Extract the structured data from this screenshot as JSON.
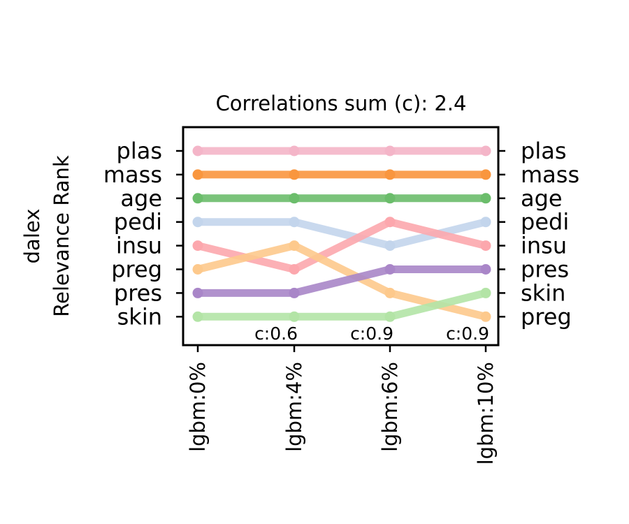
{
  "chart_data": {
    "type": "line",
    "title": "Correlations sum (c): 2.4",
    "ylabel_lines": [
      "dalex",
      "Relevance Rank"
    ],
    "categories": [
      "lgbm:0%",
      "lgbm:4%",
      "lgbm:6%",
      "lgbm:10%"
    ],
    "correlations": [
      "",
      "c:0.6",
      "c:0.9",
      "c:0.9"
    ],
    "left_labels": [
      "plas",
      "mass",
      "age",
      "pedi",
      "insu",
      "preg",
      "pres",
      "skin"
    ],
    "right_labels": [
      "plas",
      "mass",
      "age",
      "pedi",
      "insu",
      "pres",
      "skin",
      "preg"
    ],
    "rank_range": [
      1,
      8
    ],
    "series": [
      {
        "name": "plas",
        "ranks": [
          1,
          1,
          1,
          1
        ],
        "color": "#f4b5c8"
      },
      {
        "name": "mass",
        "ranks": [
          2,
          2,
          2,
          2
        ],
        "color": "#f9963e"
      },
      {
        "name": "age",
        "ranks": [
          3,
          3,
          3,
          3
        ],
        "color": "#6bbd6b"
      },
      {
        "name": "pedi",
        "ranks": [
          4,
          4,
          5,
          4
        ],
        "color": "#c3d5ec"
      },
      {
        "name": "insu",
        "ranks": [
          5,
          6,
          4,
          5
        ],
        "color": "#fca7ad"
      },
      {
        "name": "preg",
        "ranks": [
          6,
          5,
          7,
          8
        ],
        "color": "#fdc98c"
      },
      {
        "name": "pres",
        "ranks": [
          7,
          7,
          6,
          6
        ],
        "color": "#a986c8"
      },
      {
        "name": "skin",
        "ranks": [
          8,
          8,
          8,
          7
        ],
        "color": "#b3e4a6"
      }
    ]
  }
}
